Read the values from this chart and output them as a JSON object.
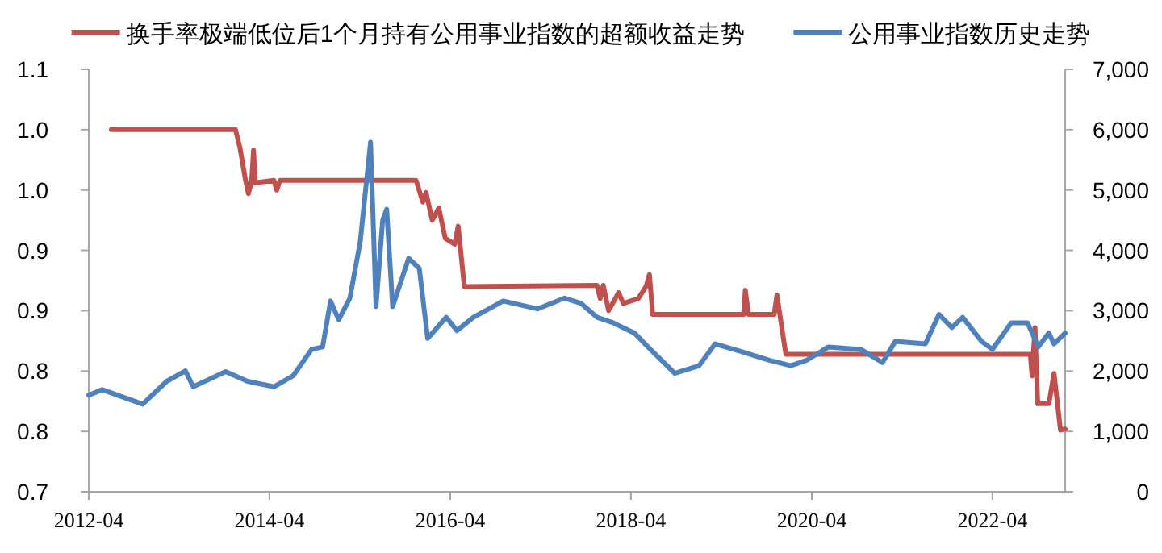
{
  "chart_data": {
    "type": "line",
    "legend": "top",
    "grid": false,
    "line_style": "solid",
    "marker": "none",
    "xlim": [
      "2012-04",
      "2023-01-20"
    ],
    "xticks": [
      "2012-04",
      "2014-04",
      "2016-04",
      "2018-04",
      "2020-04",
      "2022-04"
    ],
    "ylim": [
      0.7,
      1.05
    ],
    "yticks": [
      0.7,
      {
        "value": 0.75,
        "label": "0.8"
      },
      0.8,
      {
        "value": 0.85,
        "label": "0.9"
      },
      0.9,
      {
        "value": 0.95,
        "label": "1.0"
      },
      {
        "value": 1.0,
        "label": "1.0"
      },
      {
        "value": 1.05,
        "label": "1.1"
      }
    ],
    "y2lim": [
      0,
      7000
    ],
    "y2ticks": [
      0,
      {
        "value": 1000,
        "label": "1,000"
      },
      {
        "value": 2000,
        "label": "2,000"
      },
      {
        "value": 3000,
        "label": "3,000"
      },
      {
        "value": 4000,
        "label": "4,000"
      },
      {
        "value": 5000,
        "label": "5,000"
      },
      {
        "value": 6000,
        "label": "6,000"
      },
      {
        "value": 7000,
        "label": "7,000"
      }
    ],
    "series": [
      {
        "name": "换手率极端低位后1个月持有公用事业指数的超额收益走势",
        "color": "#c0504d",
        "x": [
          "2012-07",
          "2013-11-15",
          "2013-12-03",
          "2013-12-24",
          "2014-01-06",
          "2014-01-19",
          "2014-01-27",
          "2014-02-03",
          "2014-04-19",
          "2014-05-01",
          "2014-05-14",
          "2015-11-15",
          "2015-12-12",
          "2015-12-25",
          "2016-01-19",
          "2016-02-15",
          "2016-03-12",
          "2016-04-19",
          "2016-05-03",
          "2016-05-28",
          "2017-11-15",
          "2017-11-28",
          "2017-12-10",
          "2018-01-01",
          "2018-02-10",
          "2018-03-01",
          "2018-05-01",
          "2018-06-01",
          "2018-06-15",
          "2018-06-28",
          "2019-07-01",
          "2019-07-07",
          "2019-07-20",
          "2019-11-01",
          "2019-11-12",
          "2019-11-25",
          "2019-12-18",
          "2022-09-01",
          "2022-09-08",
          "2022-09-20",
          "2022-10-01",
          "2022-11-15",
          "2022-12-06",
          "2023-01-01",
          "2023-01-20"
        ],
        "values": [
          1.0,
          1.0,
          0.985,
          0.96,
          0.947,
          0.957,
          0.983,
          0.956,
          0.958,
          0.95,
          0.958,
          0.958,
          0.94,
          0.948,
          0.925,
          0.935,
          0.91,
          0.905,
          0.92,
          0.87,
          0.871,
          0.86,
          0.871,
          0.85,
          0.865,
          0.856,
          0.86,
          0.87,
          0.88,
          0.847,
          0.847,
          0.867,
          0.847,
          0.847,
          0.863,
          0.845,
          0.814,
          0.814,
          0.796,
          0.836,
          0.773,
          0.773,
          0.798,
          0.751,
          0.752
        ]
      },
      {
        "name": "公用事业指数历史走势",
        "color": "#4f81bd",
        "axis": "y2",
        "x": [
          "2012-04-01",
          "2012-05-25",
          "2012-11-05",
          "2013-02-10",
          "2013-04-27",
          "2013-05-28",
          "2013-10-06",
          "2014-01-03",
          "2014-04-19",
          "2014-07-06",
          "2014-09-19",
          "2014-11-02",
          "2014-12-04",
          "2015-01-06",
          "2015-02-20",
          "2015-04-03",
          "2015-05-15",
          "2015-06-06",
          "2015-07-03",
          "2015-07-19",
          "2015-08-12",
          "2015-10-16",
          "2015-11-28",
          "2016-01-01",
          "2016-03-16",
          "2016-04-28",
          "2016-07-03",
          "2016-11-01",
          "2017-03-19",
          "2017-07-07",
          "2017-09-12",
          "2017-11-15",
          "2018-01-19",
          "2018-04-15",
          "2018-06-19",
          "2018-09-25",
          "2019-01-02",
          "2019-03-07",
          "2019-06-24",
          "2019-10-12",
          "2020-01-07",
          "2020-03-12",
          "2020-06-07",
          "2020-10-16",
          "2021-01-12",
          "2021-03-04",
          "2021-07-04",
          "2021-08-28",
          "2021-10-19",
          "2021-12-02",
          "2022-02-17",
          "2022-04-01",
          "2022-06-16",
          "2022-08-21",
          "2022-10-03",
          "2022-11-15",
          "2022-12-06",
          "2023-01-20"
        ],
        "values": [
          1600,
          1690,
          1450,
          1830,
          2000,
          1740,
          1990,
          1830,
          1740,
          1920,
          2360,
          2400,
          3160,
          2850,
          3210,
          4140,
          5790,
          3070,
          4500,
          4680,
          3070,
          3870,
          3700,
          2540,
          2890,
          2670,
          2890,
          3160,
          3030,
          3210,
          3120,
          2890,
          2800,
          2630,
          2360,
          1960,
          2090,
          2450,
          2320,
          2180,
          2090,
          2180,
          2400,
          2360,
          2140,
          2490,
          2450,
          2940,
          2720,
          2890,
          2490,
          2360,
          2800,
          2800,
          2400,
          2630,
          2450,
          2630
        ]
      }
    ]
  }
}
